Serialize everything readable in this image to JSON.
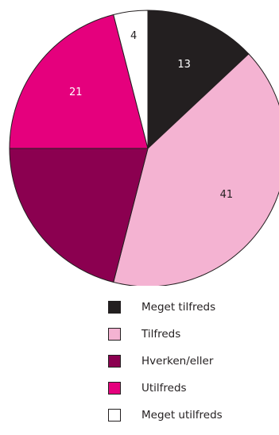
{
  "colors": {
    "stroke": "#231f20",
    "label_dark": "#231f20",
    "label_light": "#ffffff"
  },
  "chart_data": {
    "type": "pie",
    "start_angle_deg": 0,
    "direction": "clockwise",
    "slices": [
      {
        "label": "Meget tilfreds",
        "value": 13,
        "display": "13",
        "color": "#231f20"
      },
      {
        "label": "Tilfreds",
        "value": 41,
        "display": "41",
        "color": "#f4b3d2"
      },
      {
        "label": "Hverken/eller",
        "value": 21,
        "display": "",
        "color": "#8b0050"
      },
      {
        "label": "Utilfreds",
        "value": 21,
        "display": "21",
        "color": "#e5007d"
      },
      {
        "label": "Meget utilfreds",
        "value": 4,
        "display": "4",
        "color": "#ffffff"
      }
    ],
    "legend": {
      "placement": "bottom",
      "items": [
        {
          "label": "Meget tilfreds",
          "color": "#231f20"
        },
        {
          "label": "Tilfreds",
          "color": "#f4b3d2"
        },
        {
          "label": "Hverken/eller",
          "color": "#8b0050"
        },
        {
          "label": "Utilfreds",
          "color": "#e5007d"
        },
        {
          "label": "Meget utilfreds",
          "color": "#ffffff"
        }
      ]
    }
  }
}
